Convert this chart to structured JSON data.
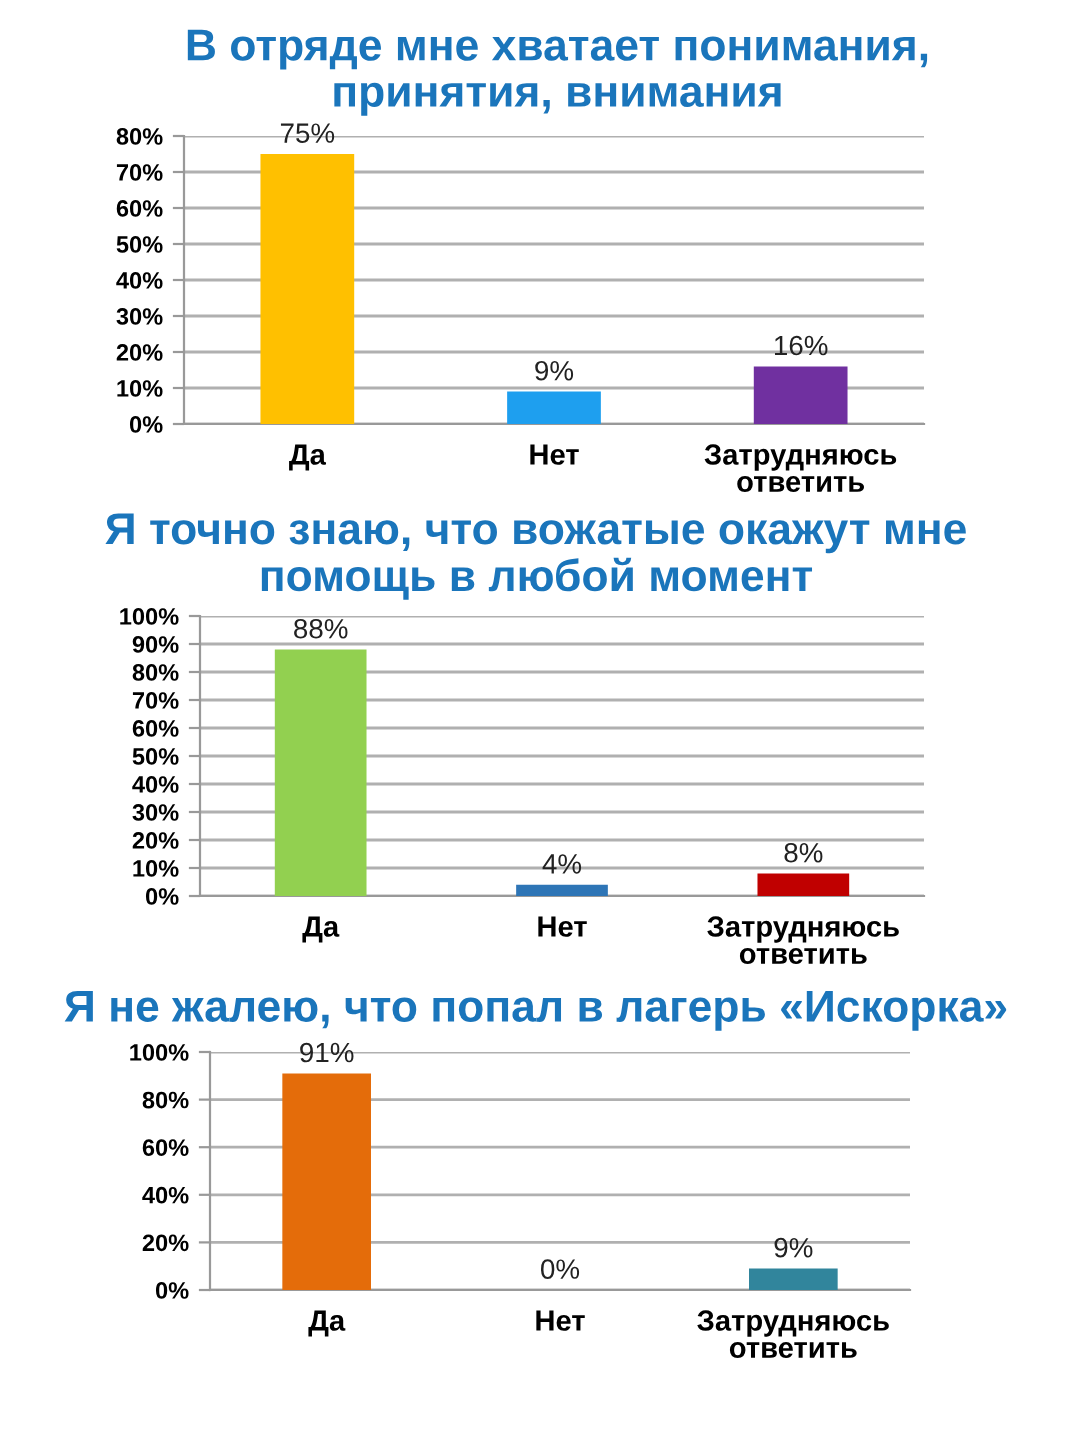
{
  "chart_data": [
    {
      "type": "bar",
      "title": "В отряде мне хватает понимания,\nпринятия, внимания",
      "categories": [
        "Да",
        "Нет",
        "Затрудняюсь\nответить"
      ],
      "values": [
        75,
        9,
        16
      ],
      "colors": [
        "#ffc000",
        "#1e9fef",
        "#7030a0"
      ],
      "value_labels": [
        "75%",
        "9%",
        "16%"
      ],
      "ylim": [
        0,
        80
      ],
      "yticks": [
        {
          "value": 0,
          "label": "0%"
        },
        {
          "value": 10,
          "label": "10%"
        },
        {
          "value": 20,
          "label": "20%"
        },
        {
          "value": 30,
          "label": "30%"
        },
        {
          "value": 40,
          "label": "40%"
        },
        {
          "value": 50,
          "label": "50%"
        },
        {
          "value": 60,
          "label": "60%"
        },
        {
          "value": 70,
          "label": "70%"
        },
        {
          "value": 80,
          "label": "80%"
        }
      ],
      "grid": "y"
    },
    {
      "type": "bar",
      "title": "Я точно знаю, что вожатые окажут мне\nпомощь в любой момент",
      "categories": [
        "Да",
        "Нет",
        "Затрудняюсь\nответить"
      ],
      "values": [
        88,
        4,
        8
      ],
      "colors": [
        "#92d050",
        "#2e75b6",
        "#c00000"
      ],
      "value_labels": [
        "88%",
        "4%",
        "8%"
      ],
      "ylim": [
        0,
        100
      ],
      "yticks": [
        {
          "value": 0,
          "label": "0%"
        },
        {
          "value": 10,
          "label": "10%"
        },
        {
          "value": 20,
          "label": "20%"
        },
        {
          "value": 30,
          "label": "30%"
        },
        {
          "value": 40,
          "label": "40%"
        },
        {
          "value": 50,
          "label": "50%"
        },
        {
          "value": 60,
          "label": "60%"
        },
        {
          "value": 70,
          "label": "70%"
        },
        {
          "value": 80,
          "label": "80%"
        },
        {
          "value": 90,
          "label": "90%"
        },
        {
          "value": 100,
          "label": "100%"
        }
      ],
      "grid": "y"
    },
    {
      "type": "bar",
      "title": "Я не жалею, что попал в лагерь «Искорка»",
      "categories": [
        "Да",
        "Нет",
        "Затрудняюсь\nответить"
      ],
      "values": [
        91,
        0,
        9
      ],
      "colors": [
        "#e46c0a",
        "#31859c",
        "#31859c"
      ],
      "value_labels": [
        "91%",
        "0%",
        "9%"
      ],
      "ylim": [
        0,
        100
      ],
      "yticks": [
        {
          "value": 0,
          "label": "0%"
        },
        {
          "value": 20,
          "label": "20%"
        },
        {
          "value": 40,
          "label": "40%"
        },
        {
          "value": 60,
          "label": "60%"
        },
        {
          "value": 80,
          "label": "80%"
        },
        {
          "value": 100,
          "label": "100%"
        }
      ],
      "grid": "y"
    }
  ]
}
